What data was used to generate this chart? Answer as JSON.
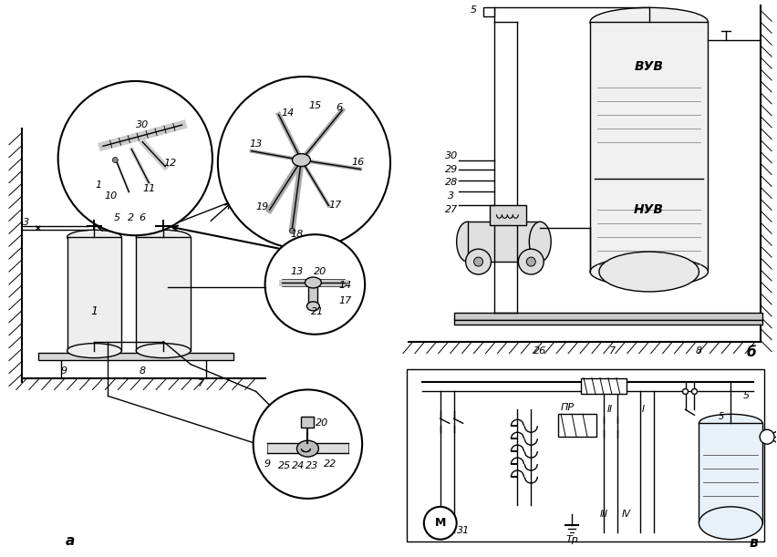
{
  "background_color": "#ffffff",
  "figsize": [
    8.53,
    6.11
  ],
  "dpi": 100,
  "label_a": "а",
  "label_b": "б",
  "label_v": "в",
  "text_vub": "ВУВ",
  "text_nuv": "НУВ",
  "text_pr": "ПР",
  "text_tr": "Тр"
}
